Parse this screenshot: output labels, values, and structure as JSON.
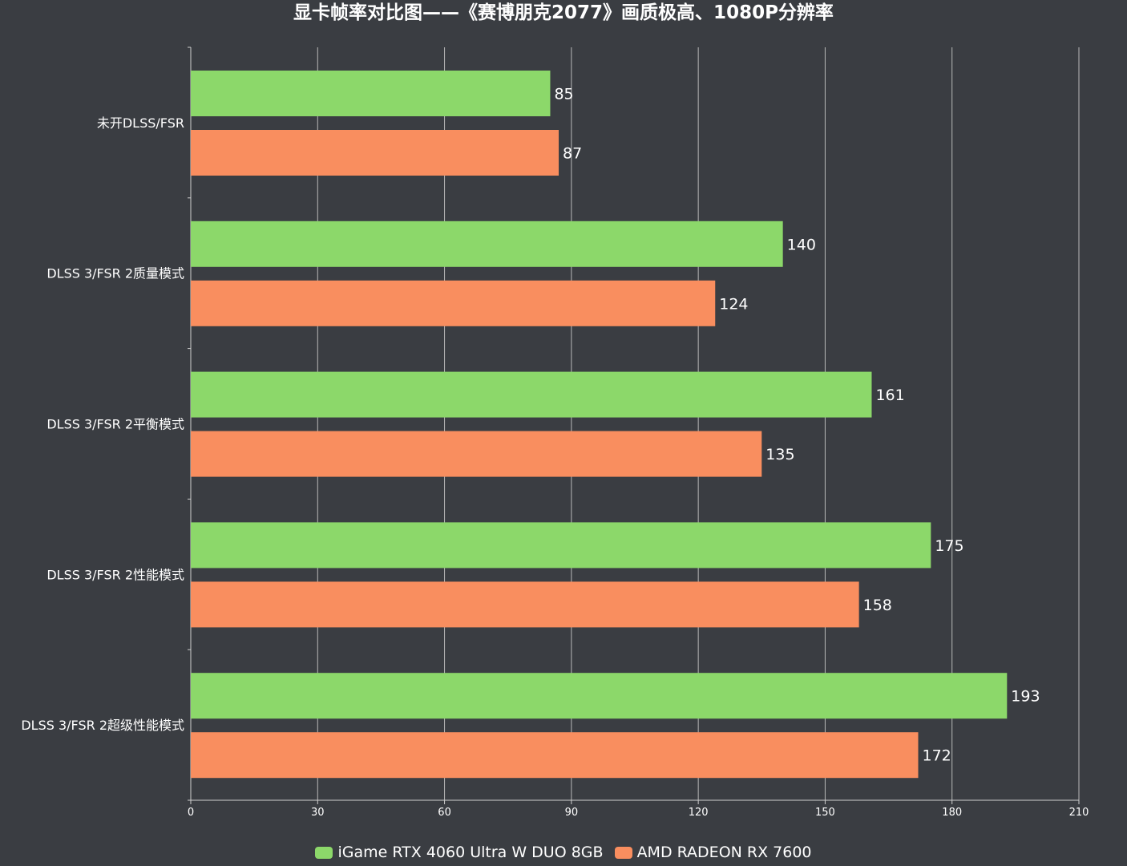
{
  "chart_data": {
    "type": "bar",
    "orientation": "horizontal",
    "title": "显卡帧率对比图——《赛博朋克2077》画质极高、1080P分辨率",
    "categories": [
      "未开DLSS/FSR",
      "DLSS 3/FSR 2质量模式",
      "DLSS 3/FSR 2平衡模式",
      "DLSS 3/FSR 2性能模式",
      "DLSS 3/FSR 2超级性能模式"
    ],
    "series": [
      {
        "name": "iGame RTX 4060 Ultra W DUO 8GB",
        "color": "#8cd86a",
        "values": [
          85,
          140,
          161,
          175,
          193
        ]
      },
      {
        "name": "AMD RADEON RX 7600",
        "color": "#f98e5f",
        "values": [
          87,
          124,
          135,
          158,
          172
        ]
      }
    ],
    "xlim": [
      0,
      210
    ],
    "xticks": [
      "0",
      "30",
      "60",
      "90",
      "120",
      "150",
      "180",
      "210"
    ],
    "xlabel": "",
    "ylabel": "",
    "grid": "vertical",
    "data_labels": true,
    "legend_position": "bottom-center"
  },
  "colors": {
    "background": "#3a3d42",
    "grid": "#b8b8b8",
    "axis": "#cfcfcf",
    "text": "#ffffff"
  }
}
